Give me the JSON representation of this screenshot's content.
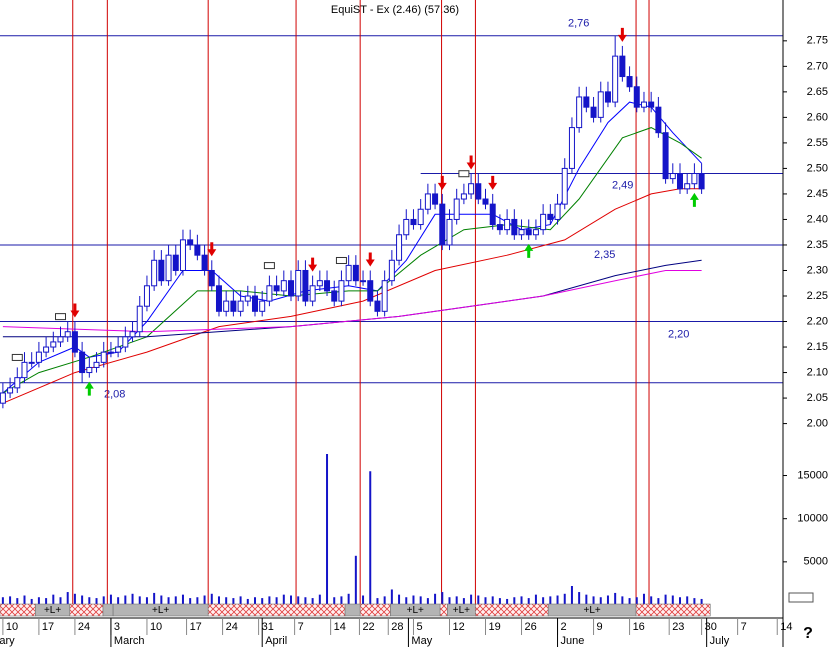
{
  "chart_data": {
    "type": "candlestick",
    "title": "EquiST - Ex (2.46) (57.36)",
    "help": "?",
    "xlim": [
      -0.4,
      108.3
    ],
    "ylim": [
      1.96,
      2.83
    ],
    "vlim": [
      0,
      19000
    ],
    "yticks": [
      {
        "value": 2.0,
        "label": "2.00"
      },
      2.05,
      {
        "value": 2.1,
        "label": "2.10"
      },
      2.15,
      {
        "value": 2.2,
        "label": "2.20"
      },
      2.25,
      {
        "value": 2.3,
        "label": "2.30"
      },
      2.35,
      {
        "value": 2.4,
        "label": "2.40"
      },
      2.45,
      {
        "value": 2.5,
        "label": "2.50"
      },
      2.55,
      {
        "value": 2.6,
        "label": "2.60"
      },
      2.65,
      {
        "value": 2.7,
        "label": "2.70"
      },
      2.75
    ],
    "vticks": [
      5000,
      10000,
      15000
    ],
    "xticks": [
      {
        "value": 0,
        "label": "10"
      },
      {
        "value": 5,
        "label": "17"
      },
      {
        "value": 10,
        "label": "24"
      },
      {
        "value": 15,
        "label": "3"
      },
      {
        "value": 20,
        "label": "10"
      },
      {
        "value": 25.5,
        "label": "17"
      },
      {
        "value": 30.5,
        "label": "24"
      },
      {
        "value": 35.5,
        "label": "31"
      },
      {
        "value": 40.5,
        "label": "7"
      },
      {
        "value": 45.5,
        "label": "14"
      },
      {
        "value": 49.5,
        "label": "22"
      },
      {
        "value": 53.5,
        "label": "28"
      },
      {
        "value": 57,
        "label": "5"
      },
      {
        "value": 62,
        "label": "12"
      },
      {
        "value": 67,
        "label": "19"
      },
      {
        "value": 72,
        "label": "26"
      },
      {
        "value": 77,
        "label": "2"
      },
      {
        "value": 82,
        "label": "9"
      },
      {
        "value": 87,
        "label": "16"
      },
      {
        "value": 92.5,
        "label": "23"
      },
      {
        "value": 97,
        "label": "30"
      },
      {
        "value": 102,
        "label": "7"
      },
      {
        "value": 107.5,
        "label": "14"
      }
    ],
    "months": [
      {
        "value": -0.9,
        "label": "ary"
      },
      {
        "value": 15,
        "label": "March"
      },
      {
        "value": 36,
        "label": "April"
      },
      {
        "value": 56.3,
        "label": "May"
      },
      {
        "value": 77,
        "label": "June"
      },
      {
        "value": 97.7,
        "label": "July"
      }
    ],
    "color": "#1414c8",
    "open": [
      2.04,
      2.06,
      2.07,
      2.09,
      2.12,
      2.12,
      2.14,
      2.15,
      2.16,
      2.17,
      2.18,
      2.14,
      2.1,
      2.11,
      2.12,
      2.14,
      2.14,
      2.15,
      2.17,
      2.18,
      2.23,
      2.27,
      2.32,
      2.28,
      2.33,
      2.3,
      2.36,
      2.35,
      2.33,
      2.3,
      2.27,
      2.22,
      2.24,
      2.22,
      2.24,
      2.25,
      2.22,
      2.24,
      2.27,
      2.26,
      2.28,
      2.25,
      2.3,
      2.24,
      2.27,
      2.28,
      2.26,
      2.24,
      2.28,
      2.31,
      2.28,
      2.28,
      2.24,
      2.22,
      2.28,
      2.32,
      2.37,
      2.4,
      2.39,
      2.42,
      2.45,
      2.43,
      2.35,
      2.4,
      2.44,
      2.45,
      2.47,
      2.44,
      2.43,
      2.39,
      2.38,
      2.4,
      2.37,
      2.38,
      2.37,
      2.38,
      2.41,
      2.4,
      2.43,
      2.5,
      2.58,
      2.64,
      2.62,
      2.6,
      2.65,
      2.63,
      2.72,
      2.68,
      2.66,
      2.62,
      2.63,
      2.62,
      2.57,
      2.48,
      2.49,
      2.46,
      2.47,
      2.49
    ],
    "high": [
      2.08,
      2.09,
      2.11,
      2.14,
      2.14,
      2.16,
      2.17,
      2.18,
      2.19,
      2.2,
      2.2,
      2.16,
      2.13,
      2.14,
      2.16,
      2.16,
      2.17,
      2.19,
      2.2,
      2.25,
      2.29,
      2.34,
      2.34,
      2.35,
      2.35,
      2.38,
      2.38,
      2.37,
      2.35,
      2.32,
      2.29,
      2.26,
      2.26,
      2.26,
      2.27,
      2.27,
      2.26,
      2.29,
      2.29,
      2.3,
      2.3,
      2.32,
      2.32,
      2.29,
      2.3,
      2.3,
      2.28,
      2.3,
      2.33,
      2.33,
      2.3,
      2.3,
      2.26,
      2.3,
      2.34,
      2.39,
      2.42,
      2.42,
      2.44,
      2.47,
      2.47,
      2.45,
      2.42,
      2.46,
      2.47,
      2.49,
      2.49,
      2.46,
      2.45,
      2.41,
      2.42,
      2.42,
      2.4,
      2.4,
      2.4,
      2.43,
      2.43,
      2.45,
      2.52,
      2.6,
      2.66,
      2.66,
      2.64,
      2.67,
      2.67,
      2.76,
      2.74,
      2.7,
      2.68,
      2.65,
      2.65,
      2.64,
      2.59,
      2.51,
      2.51,
      2.49,
      2.51,
      2.51
    ],
    "low": [
      2.03,
      2.05,
      2.06,
      2.08,
      2.11,
      2.11,
      2.13,
      2.14,
      2.15,
      2.16,
      2.13,
      2.08,
      2.09,
      2.1,
      2.11,
      2.13,
      2.13,
      2.14,
      2.16,
      2.17,
      2.22,
      2.26,
      2.27,
      2.27,
      2.29,
      2.29,
      2.34,
      2.32,
      2.29,
      2.26,
      2.21,
      2.21,
      2.21,
      2.21,
      2.23,
      2.21,
      2.21,
      2.23,
      2.25,
      2.25,
      2.24,
      2.24,
      2.23,
      2.23,
      2.26,
      2.25,
      2.23,
      2.23,
      2.27,
      2.27,
      2.27,
      2.23,
      2.21,
      2.21,
      2.27,
      2.31,
      2.36,
      2.38,
      2.38,
      2.41,
      2.42,
      2.34,
      2.34,
      2.39,
      2.43,
      2.44,
      2.43,
      2.42,
      2.38,
      2.37,
      2.37,
      2.36,
      2.36,
      2.36,
      2.36,
      2.37,
      2.39,
      2.39,
      2.42,
      2.49,
      2.57,
      2.61,
      2.59,
      2.59,
      2.62,
      2.62,
      2.67,
      2.65,
      2.61,
      2.61,
      2.61,
      2.56,
      2.47,
      2.47,
      2.45,
      2.45,
      2.46,
      2.45
    ],
    "close": [
      2.06,
      2.07,
      2.09,
      2.12,
      2.12,
      2.14,
      2.15,
      2.16,
      2.17,
      2.18,
      2.14,
      2.1,
      2.11,
      2.12,
      2.14,
      2.14,
      2.15,
      2.17,
      2.18,
      2.23,
      2.27,
      2.32,
      2.28,
      2.33,
      2.3,
      2.36,
      2.35,
      2.33,
      2.3,
      2.27,
      2.22,
      2.24,
      2.22,
      2.24,
      2.25,
      2.22,
      2.24,
      2.27,
      2.26,
      2.28,
      2.25,
      2.3,
      2.24,
      2.27,
      2.28,
      2.26,
      2.24,
      2.28,
      2.31,
      2.28,
      2.28,
      2.24,
      2.22,
      2.28,
      2.32,
      2.37,
      2.4,
      2.39,
      2.42,
      2.45,
      2.43,
      2.35,
      2.4,
      2.44,
      2.45,
      2.47,
      2.44,
      2.43,
      2.39,
      2.38,
      2.4,
      2.37,
      2.38,
      2.37,
      2.38,
      2.41,
      2.4,
      2.43,
      2.5,
      2.58,
      2.64,
      2.62,
      2.6,
      2.65,
      2.63,
      2.72,
      2.68,
      2.66,
      2.62,
      2.63,
      2.62,
      2.57,
      2.48,
      2.49,
      2.46,
      2.47,
      2.49,
      2.46
    ],
    "volume": [
      900,
      1000,
      800,
      1100,
      700,
      900,
      800,
      1200,
      900,
      1500,
      1300,
      1100,
      900,
      800,
      1000,
      1200,
      900,
      1100,
      1300,
      1000,
      900,
      1400,
      1100,
      900,
      1000,
      1200,
      800,
      900,
      1100,
      1300,
      1000,
      900,
      800,
      1000,
      700,
      900,
      800,
      1000,
      900,
      1200,
      1100,
      1000,
      900,
      800,
      1200,
      17500,
      900,
      1000,
      1300,
      5700,
      1100,
      15500,
      800,
      1000,
      1800,
      1200,
      900,
      1100,
      1000,
      800,
      1300,
      1500,
      900,
      1000,
      800,
      1200,
      1100,
      900,
      1000,
      800,
      700,
      900,
      1000,
      800,
      1200,
      900,
      1000,
      1100,
      1300,
      2200,
      1500,
      1200,
      1000,
      900,
      1100,
      1400,
      1000,
      800,
      900,
      1300,
      1000,
      800,
      1200,
      1100,
      900,
      1000,
      800,
      700
    ],
    "lines": [
      {
        "color": "#0000ff",
        "x": [
          0,
          5,
          10,
          12,
          16,
          20,
          25,
          29,
          33,
          37,
          42,
          48,
          52,
          56,
          60,
          64,
          68,
          72,
          76,
          80,
          84,
          87,
          90,
          93,
          97
        ],
        "values": [
          2.06,
          2.12,
          2.15,
          2.13,
          2.14,
          2.2,
          2.3,
          2.3,
          2.25,
          2.24,
          2.26,
          2.27,
          2.26,
          2.32,
          2.41,
          2.41,
          2.41,
          2.38,
          2.39,
          2.5,
          2.59,
          2.63,
          2.62,
          2.57,
          2.51
        ]
      },
      {
        "color": "#008000",
        "x": [
          0,
          5,
          12,
          20,
          27,
          33,
          40,
          48,
          52,
          58,
          64,
          70,
          76,
          80,
          86,
          90,
          94,
          97
        ],
        "values": [
          2.06,
          2.1,
          2.13,
          2.17,
          2.26,
          2.26,
          2.25,
          2.26,
          2.26,
          2.33,
          2.38,
          2.39,
          2.38,
          2.44,
          2.56,
          2.58,
          2.55,
          2.52
        ]
      },
      {
        "color": "#e00000",
        "x": [
          0,
          10,
          20,
          30,
          40,
          50,
          60,
          70,
          78,
          85,
          90,
          94,
          97
        ],
        "values": [
          2.04,
          2.1,
          2.14,
          2.19,
          2.21,
          2.24,
          2.3,
          2.33,
          2.36,
          2.42,
          2.45,
          2.46,
          2.46
        ]
      },
      {
        "color": "#000080",
        "x": [
          0,
          20,
          40,
          55,
          65,
          75,
          85,
          92,
          97
        ],
        "values": [
          2.17,
          2.17,
          2.19,
          2.21,
          2.23,
          2.25,
          2.29,
          2.31,
          2.32
        ]
      },
      {
        "color": "#e000e0",
        "x": [
          0,
          20,
          40,
          55,
          65,
          75,
          85,
          92,
          97
        ],
        "values": [
          2.19,
          2.18,
          2.19,
          2.21,
          2.23,
          2.25,
          2.28,
          2.3,
          2.3
        ]
      }
    ],
    "levels": [
      {
        "value": 2.76,
        "label": "2,76"
      },
      {
        "value": 2.49,
        "label": "2,49",
        "from": 58
      },
      {
        "value": 2.35,
        "label": "2,35"
      },
      {
        "value": 2.2,
        "label": "2,20"
      },
      {
        "value": 2.08,
        "label": "2,08"
      }
    ],
    "signals": [
      9.7,
      14.5,
      28.5,
      40.7,
      49.6,
      60.9,
      65.6,
      87.9,
      89.7
    ],
    "sell_arrows": [
      10,
      29,
      43,
      51,
      61,
      65,
      68,
      86
    ],
    "buy_arrows": [
      12,
      73,
      96
    ],
    "news": [
      2,
      8,
      37,
      47,
      64
    ],
    "bands": [
      {
        "x": [
          -0.4,
          4.5
        ]
      },
      {
        "x": [
          4.5,
          9.3
        ],
        "label": "+L+"
      },
      {
        "x": [
          9.3,
          13.9
        ]
      },
      {
        "x": [
          13.9,
          15.3
        ],
        "label": ""
      },
      {
        "x": [
          15.3,
          28.5
        ],
        "label": "+L+"
      },
      {
        "x": [
          28.5,
          47.5
        ]
      },
      {
        "x": [
          47.5,
          49.6
        ],
        "label": ""
      },
      {
        "x": [
          49.6,
          53.8
        ]
      },
      {
        "x": [
          53.8,
          60.7
        ],
        "label": "+L+"
      },
      {
        "x": [
          60.7,
          61.7
        ]
      },
      {
        "x": [
          61.7,
          65.6
        ],
        "label": "+L+"
      },
      {
        "x": [
          65.6,
          75.7
        ]
      },
      {
        "x": [
          75.7,
          87.9
        ],
        "label": "+L+"
      },
      {
        "x": [
          87.9,
          98.2
        ]
      }
    ]
  }
}
